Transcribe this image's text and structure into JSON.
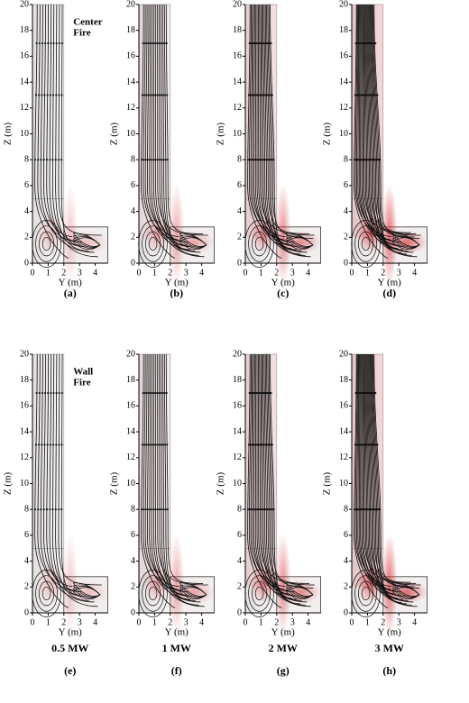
{
  "axes": {
    "y_label": "Z (m)",
    "x_label": "Y (m)",
    "yticks": [
      0,
      2,
      4,
      6,
      8,
      10,
      12,
      14,
      16,
      18,
      20
    ],
    "xticks": [
      0,
      1,
      2,
      3,
      4
    ]
  },
  "panels": [
    {
      "label": "(a)",
      "annotation": [
        "Center",
        "Fire"
      ]
    },
    {
      "label": "(b)"
    },
    {
      "label": "(c)"
    },
    {
      "label": "(d)"
    },
    {
      "label": "(e)",
      "annotation": [
        "Wall",
        "Fire"
      ]
    },
    {
      "label": "(f)"
    },
    {
      "label": "(g)"
    },
    {
      "label": "(h)"
    }
  ],
  "power_labels": [
    "0.5 MW",
    "1 MW",
    "2 MW",
    "3 MW"
  ]
}
